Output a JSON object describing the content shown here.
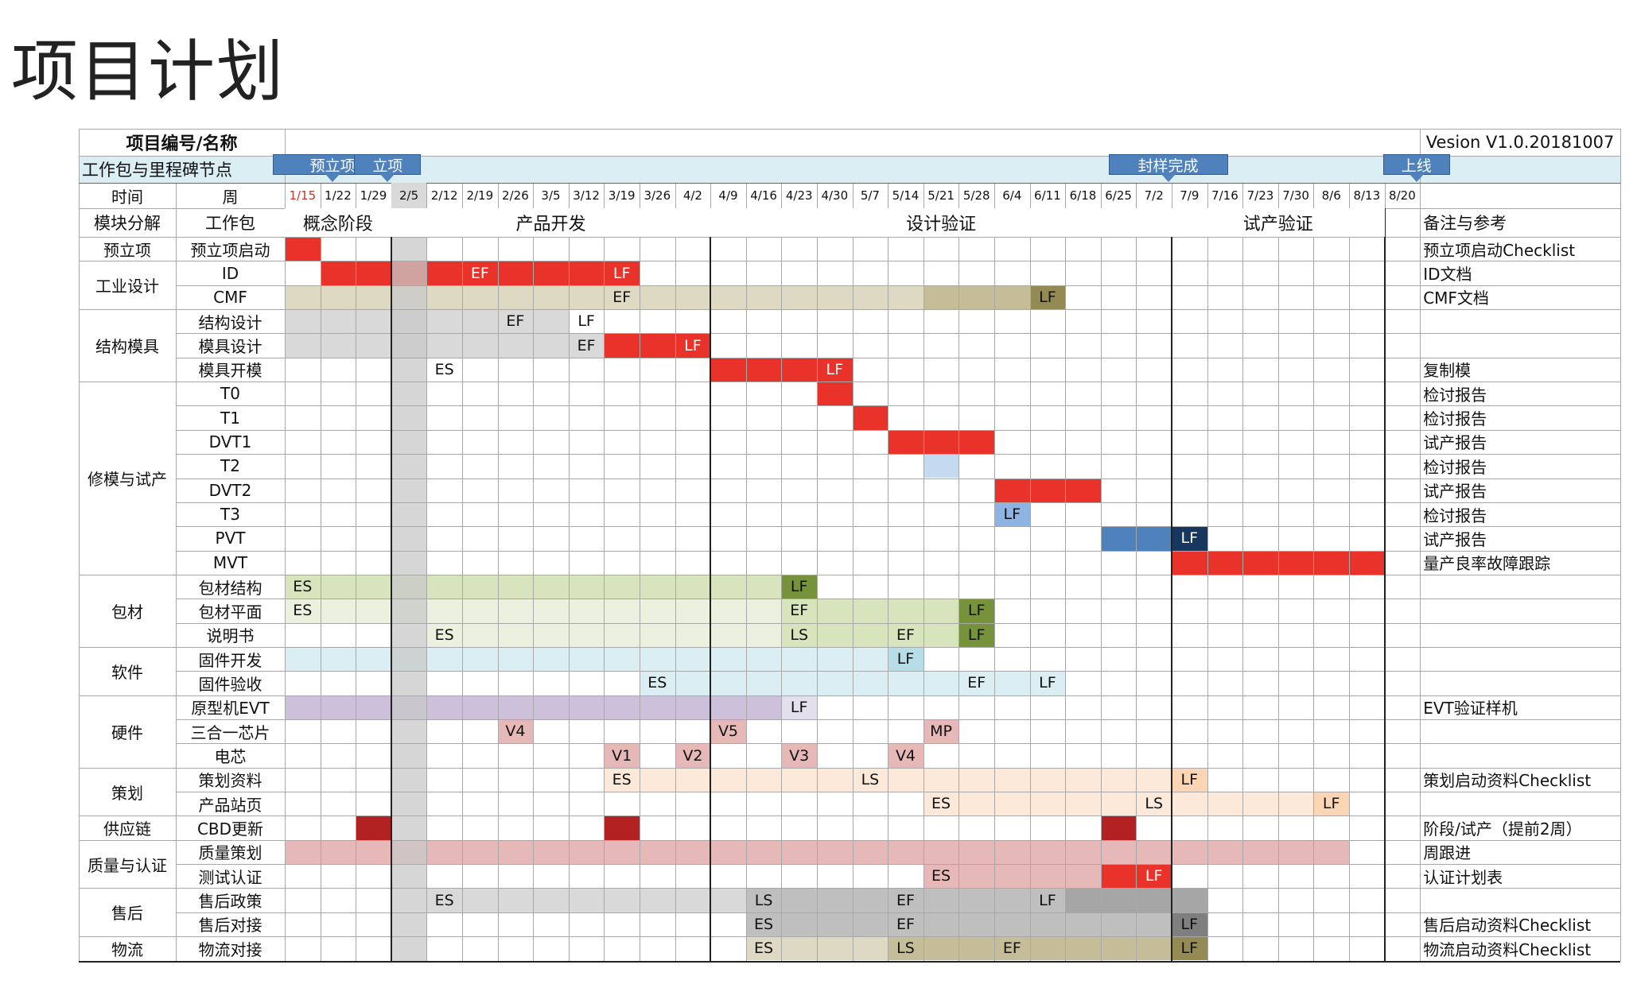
{
  "page_title": "项目计划",
  "header": {
    "project_label": "项目编号/名称",
    "version": "Vesion V1.0.20181007",
    "milestone_label": "工作包与里程碑节点",
    "time_label": "时间",
    "week_label": "周",
    "module_label": "模块分解",
    "package_label": "工作包",
    "notes_label": "备注与参考"
  },
  "weeks": [
    "1/15",
    "1/22",
    "1/29",
    "2/5",
    "2/12",
    "2/19",
    "2/26",
    "3/5",
    "3/12",
    "3/19",
    "3/26",
    "4/2",
    "4/9",
    "4/16",
    "4/23",
    "4/30",
    "5/7",
    "5/14",
    "5/21",
    "5/28",
    "6/4",
    "6/11",
    "6/18",
    "6/25",
    "7/2",
    "7/9",
    "7/16",
    "7/23",
    "7/30",
    "8/6",
    "8/13",
    "8/20"
  ],
  "phases": [
    {
      "label": "概念阶段",
      "start": 0,
      "end": 2
    },
    {
      "label": "产品开发",
      "start": 3,
      "end": 11
    },
    {
      "label": "设计验证",
      "start": 12,
      "end": 24
    },
    {
      "label": "试产验证",
      "start": 25,
      "end": 30
    }
  ],
  "milestones": [
    {
      "label": "预立项",
      "col": 0
    },
    {
      "label": "立项",
      "col": 2
    },
    {
      "label": "封样完成",
      "col": 24
    },
    {
      "label": "上线",
      "col": 31
    }
  ],
  "modules": [
    {
      "label": "预立项",
      "start": 0,
      "span": 1
    },
    {
      "label": "工业设计",
      "start": 1,
      "span": 2
    },
    {
      "label": "结构模具",
      "start": 3,
      "span": 3
    },
    {
      "label": "修模与试产",
      "start": 6,
      "span": 8
    },
    {
      "label": "包材",
      "start": 14,
      "span": 3
    },
    {
      "label": "软件",
      "start": 17,
      "span": 2
    },
    {
      "label": "硬件",
      "start": 19,
      "span": 3
    },
    {
      "label": "策划",
      "start": 22,
      "span": 2
    },
    {
      "label": "供应链",
      "start": 24,
      "span": 1
    },
    {
      "label": "质量与认证",
      "start": 25,
      "span": 2
    },
    {
      "label": "售后",
      "start": 27,
      "span": 2
    },
    {
      "label": "物流",
      "start": 29,
      "span": 1
    }
  ],
  "rows": [
    {
      "package": "预立项启动",
      "note": "预立项启动Checklist",
      "segs": [
        [
          0,
          0,
          "#e8322a"
        ]
      ],
      "labels": []
    },
    {
      "package": "ID",
      "note": "ID文档",
      "segs": [
        [
          1,
          9,
          "#e8322a"
        ]
      ],
      "labels": [
        [
          5,
          "EF"
        ],
        [
          9,
          "LF"
        ]
      ]
    },
    {
      "package": "CMF",
      "note": "CMF文档",
      "segs": [
        [
          0,
          17,
          "#ddd9c3"
        ],
        [
          18,
          20,
          "#c4bd97"
        ],
        [
          21,
          21,
          "#948a54"
        ]
      ],
      "labels": [
        [
          9,
          "EF"
        ],
        [
          21,
          "LF"
        ]
      ]
    },
    {
      "package": "结构设计",
      "note": "",
      "segs": [
        [
          0,
          7,
          "#d9d9d9"
        ]
      ],
      "labels": [
        [
          6,
          "EF"
        ],
        [
          8,
          "LF"
        ]
      ]
    },
    {
      "package": "模具设计",
      "note": "",
      "segs": [
        [
          0,
          8,
          "#d9d9d9"
        ],
        [
          9,
          11,
          "#e8322a"
        ]
      ],
      "labels": [
        [
          8,
          "EF"
        ],
        [
          11,
          "LF"
        ]
      ]
    },
    {
      "package": "模具开模",
      "note": "复制模",
      "segs": [
        [
          12,
          15,
          "#e8322a"
        ]
      ],
      "labels": [
        [
          4,
          "ES"
        ],
        [
          15,
          "LF"
        ]
      ]
    },
    {
      "package": "T0",
      "note": "检讨报告",
      "segs": [
        [
          15,
          15,
          "#e8322a"
        ]
      ],
      "labels": []
    },
    {
      "package": "T1",
      "note": "检讨报告",
      "segs": [
        [
          16,
          16,
          "#e8322a"
        ]
      ],
      "labels": []
    },
    {
      "package": "DVT1",
      "note": "试产报告",
      "segs": [
        [
          17,
          19,
          "#e8322a"
        ]
      ],
      "labels": []
    },
    {
      "package": "T2",
      "note": "检讨报告",
      "segs": [
        [
          18,
          18,
          "#c5d9f1"
        ]
      ],
      "labels": []
    },
    {
      "package": "DVT2",
      "note": "试产报告",
      "segs": [
        [
          20,
          22,
          "#e8322a"
        ]
      ],
      "labels": []
    },
    {
      "package": "T3",
      "note": "检讨报告",
      "segs": [
        [
          20,
          20,
          "#8db4e2"
        ]
      ],
      "labels": [
        [
          20,
          "LF"
        ]
      ]
    },
    {
      "package": "PVT",
      "note": "试产报告",
      "segs": [
        [
          23,
          24,
          "#4f81bd"
        ],
        [
          25,
          25,
          "#17375e"
        ]
      ],
      "labels": [
        [
          25,
          "LF"
        ]
      ]
    },
    {
      "package": "MVT",
      "note": "量产良率故障跟踪",
      "segs": [
        [
          25,
          30,
          "#e8322a"
        ]
      ],
      "labels": []
    },
    {
      "package": "包材结构",
      "note": "",
      "segs": [
        [
          0,
          13,
          "#d8e4bc"
        ],
        [
          14,
          14,
          "#76933c"
        ]
      ],
      "labels": [
        [
          0,
          "ES"
        ],
        [
          14,
          "LF"
        ]
      ]
    },
    {
      "package": "包材平面",
      "note": "",
      "segs": [
        [
          0,
          13,
          "#ebf1de"
        ],
        [
          14,
          18,
          "#d8e4bc"
        ],
        [
          19,
          19,
          "#76933c"
        ]
      ],
      "labels": [
        [
          0,
          "ES"
        ],
        [
          14,
          "EF"
        ],
        [
          19,
          "LF"
        ]
      ]
    },
    {
      "package": "说明书",
      "note": "",
      "segs": [
        [
          4,
          13,
          "#ebf1de"
        ],
        [
          14,
          18,
          "#d8e4bc"
        ],
        [
          19,
          19,
          "#76933c"
        ]
      ],
      "labels": [
        [
          4,
          "ES"
        ],
        [
          14,
          "LS"
        ],
        [
          17,
          "EF"
        ],
        [
          19,
          "LF"
        ]
      ]
    },
    {
      "package": "固件开发",
      "note": "",
      "segs": [
        [
          0,
          16,
          "#daeef3"
        ],
        [
          17,
          17,
          "#b7dee8"
        ]
      ],
      "labels": [
        [
          17,
          "LF"
        ]
      ]
    },
    {
      "package": "固件验收",
      "note": "",
      "segs": [
        [
          10,
          21,
          "#daeef3"
        ]
      ],
      "labels": [
        [
          10,
          "ES"
        ],
        [
          19,
          "EF"
        ],
        [
          21,
          "LF"
        ]
      ]
    },
    {
      "package": "原型机EVT",
      "note": "EVT验证样机",
      "segs": [
        [
          0,
          13,
          "#ccc0da"
        ],
        [
          14,
          14,
          "#e4dfec"
        ]
      ],
      "labels": [
        [
          14,
          "LF"
        ]
      ]
    },
    {
      "package": "三合一芯片",
      "note": "",
      "segs": [
        [
          6,
          6,
          "#e6b9b8"
        ],
        [
          12,
          12,
          "#e6b9b8"
        ],
        [
          18,
          18,
          "#e6b9b8"
        ]
      ],
      "labels": [
        [
          6,
          "V4"
        ],
        [
          12,
          "V5"
        ],
        [
          18,
          "MP"
        ]
      ]
    },
    {
      "package": "电芯",
      "note": "",
      "segs": [
        [
          9,
          9,
          "#e6b9b8"
        ],
        [
          11,
          11,
          "#e6b9b8"
        ],
        [
          14,
          14,
          "#e6b9b8"
        ],
        [
          17,
          17,
          "#e6b9b8"
        ]
      ],
      "labels": [
        [
          9,
          "V1"
        ],
        [
          11,
          "V2"
        ],
        [
          14,
          "V3"
        ],
        [
          17,
          "V4"
        ]
      ]
    },
    {
      "package": "策划资料",
      "note": "策划启动资料Checklist",
      "segs": [
        [
          9,
          24,
          "#fde9d9"
        ],
        [
          25,
          25,
          "#fcd5b4"
        ]
      ],
      "labels": [
        [
          9,
          "ES"
        ],
        [
          16,
          "LS"
        ],
        [
          25,
          "LF"
        ]
      ]
    },
    {
      "package": "产品站页",
      "note": "",
      "segs": [
        [
          18,
          28,
          "#fde9d9"
        ],
        [
          29,
          29,
          "#fcd5b4"
        ]
      ],
      "labels": [
        [
          18,
          "ES"
        ],
        [
          24,
          "LS"
        ],
        [
          29,
          "LF"
        ]
      ]
    },
    {
      "package": "CBD更新",
      "note": "阶段/试产（提前2周）",
      "segs": [
        [
          2,
          2,
          "#b22222"
        ],
        [
          9,
          9,
          "#b22222"
        ],
        [
          23,
          23,
          "#b22222"
        ]
      ],
      "labels": []
    },
    {
      "package": "质量策划",
      "note": "周跟进",
      "segs": [
        [
          0,
          29,
          "#e6b9b8"
        ]
      ],
      "labels": []
    },
    {
      "package": "测试认证",
      "note": "认证计划表",
      "segs": [
        [
          18,
          22,
          "#e6b9b8"
        ],
        [
          23,
          24,
          "#e8322a"
        ]
      ],
      "labels": [
        [
          18,
          "ES"
        ],
        [
          24,
          "LF"
        ]
      ]
    },
    {
      "package": "售后政策",
      "note": "",
      "segs": [
        [
          4,
          12,
          "#d9d9d9"
        ],
        [
          13,
          21,
          "#bfbfbf"
        ],
        [
          22,
          25,
          "#a6a6a6"
        ]
      ],
      "labels": [
        [
          4,
          "ES"
        ],
        [
          13,
          "LS"
        ],
        [
          17,
          "EF"
        ],
        [
          21,
          "LF"
        ]
      ]
    },
    {
      "package": "售后对接",
      "note": "售后启动资料Checklist",
      "segs": [
        [
          13,
          24,
          "#bfbfbf"
        ],
        [
          25,
          25,
          "#7f7f7f"
        ]
      ],
      "labels": [
        [
          13,
          "ES"
        ],
        [
          17,
          "EF"
        ],
        [
          25,
          "LF"
        ]
      ]
    },
    {
      "package": "物流对接",
      "note": "物流启动资料Checklist",
      "segs": [
        [
          13,
          16,
          "#ddd9c3"
        ],
        [
          17,
          24,
          "#c4bd97"
        ],
        [
          25,
          25,
          "#948a54"
        ]
      ],
      "labels": [
        [
          13,
          "ES"
        ],
        [
          17,
          "LS"
        ],
        [
          20,
          "EF"
        ],
        [
          25,
          "LF"
        ]
      ]
    }
  ]
}
